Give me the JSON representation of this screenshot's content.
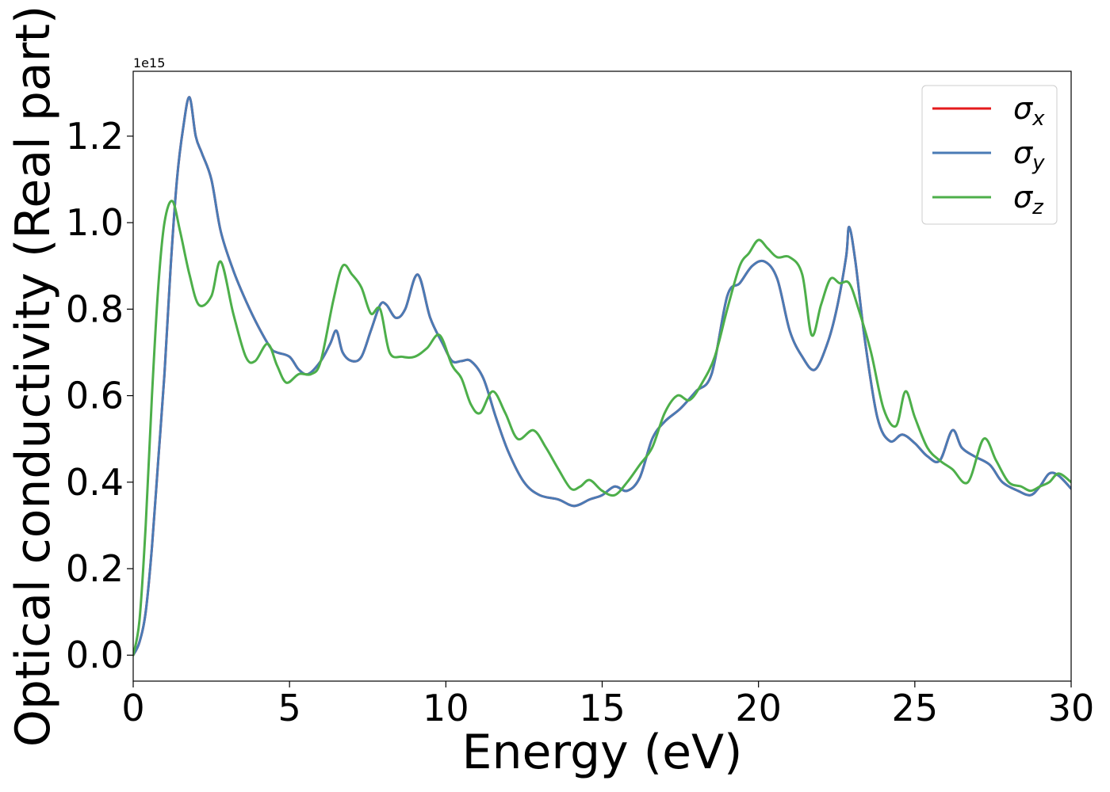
{
  "chart_data": {
    "type": "line",
    "title": "",
    "xlabel": "Energy (eV)",
    "ylabel": "Optical conductivity (Real part)",
    "y_offset_text": "1e15",
    "y_scale": 1000000000000000.0,
    "xlim": [
      0,
      30
    ],
    "ylim": [
      -0.06,
      1.35
    ],
    "xticks": [
      0,
      5,
      10,
      15,
      20,
      25,
      30
    ],
    "xtick_labels": [
      "0",
      "5",
      "10",
      "15",
      "20",
      "25",
      "30"
    ],
    "yticks": [
      0.0,
      0.2,
      0.4,
      0.6,
      0.8,
      1.0,
      1.2
    ],
    "ytick_labels": [
      "0.0",
      "0.2",
      "0.4",
      "0.6",
      "0.8",
      "1.0",
      "1.2"
    ],
    "grid": false,
    "legend_position": "top-right",
    "series": [
      {
        "name": "σx",
        "symbol": "σ",
        "subscript": "x",
        "color": "#e41a1c",
        "x": [
          0,
          0.2,
          0.4,
          0.6,
          0.8,
          1.0,
          1.2,
          1.4,
          1.6,
          1.8,
          2.0,
          2.2,
          2.5,
          2.8,
          3.2,
          3.6,
          4.0,
          4.4,
          4.6,
          5.0,
          5.3,
          5.6,
          6.0,
          6.3,
          6.5,
          6.7,
          7.0,
          7.3,
          7.6,
          7.9,
          8.1,
          8.4,
          8.7,
          9.1,
          9.5,
          9.9,
          10.2,
          10.5,
          10.8,
          11.2,
          11.6,
          12.0,
          12.5,
          13.0,
          13.6,
          14.1,
          14.6,
          15.0,
          15.4,
          15.8,
          16.2,
          16.6,
          17.0,
          17.5,
          18.0,
          18.5,
          19.0,
          19.4,
          19.8,
          20.2,
          20.6,
          21.0,
          21.4,
          21.8,
          22.2,
          22.5,
          22.8,
          22.9,
          23.1,
          23.4,
          23.8,
          24.2,
          24.6,
          25.0,
          25.4,
          25.8,
          26.2,
          26.5,
          26.9,
          27.4,
          27.8,
          28.3,
          28.7,
          29.0,
          29.3,
          29.6,
          30.0
        ],
        "y": [
          0.0,
          0.03,
          0.1,
          0.25,
          0.45,
          0.65,
          0.9,
          1.1,
          1.22,
          1.29,
          1.2,
          1.16,
          1.1,
          0.98,
          0.89,
          0.82,
          0.76,
          0.71,
          0.7,
          0.69,
          0.66,
          0.65,
          0.68,
          0.72,
          0.75,
          0.7,
          0.68,
          0.69,
          0.75,
          0.81,
          0.81,
          0.78,
          0.8,
          0.88,
          0.78,
          0.72,
          0.68,
          0.68,
          0.68,
          0.64,
          0.55,
          0.47,
          0.4,
          0.37,
          0.36,
          0.345,
          0.36,
          0.37,
          0.39,
          0.38,
          0.41,
          0.5,
          0.54,
          0.57,
          0.61,
          0.65,
          0.83,
          0.86,
          0.9,
          0.91,
          0.87,
          0.75,
          0.69,
          0.66,
          0.72,
          0.8,
          0.92,
          0.99,
          0.91,
          0.73,
          0.55,
          0.495,
          0.51,
          0.49,
          0.46,
          0.45,
          0.52,
          0.48,
          0.46,
          0.44,
          0.4,
          0.38,
          0.37,
          0.39,
          0.42,
          0.415,
          0.385
        ]
      },
      {
        "name": "σy",
        "symbol": "σ",
        "subscript": "y",
        "color": "#4a7bb5",
        "x": [
          0,
          0.2,
          0.4,
          0.6,
          0.8,
          1.0,
          1.2,
          1.4,
          1.6,
          1.8,
          2.0,
          2.2,
          2.5,
          2.8,
          3.2,
          3.6,
          4.0,
          4.4,
          4.6,
          5.0,
          5.3,
          5.6,
          6.0,
          6.3,
          6.5,
          6.7,
          7.0,
          7.3,
          7.6,
          7.9,
          8.1,
          8.4,
          8.7,
          9.1,
          9.5,
          9.9,
          10.2,
          10.5,
          10.8,
          11.2,
          11.6,
          12.0,
          12.5,
          13.0,
          13.6,
          14.1,
          14.6,
          15.0,
          15.4,
          15.8,
          16.2,
          16.6,
          17.0,
          17.5,
          18.0,
          18.5,
          19.0,
          19.4,
          19.8,
          20.2,
          20.6,
          21.0,
          21.4,
          21.8,
          22.2,
          22.5,
          22.8,
          22.9,
          23.1,
          23.4,
          23.8,
          24.2,
          24.6,
          25.0,
          25.4,
          25.8,
          26.2,
          26.5,
          26.9,
          27.4,
          27.8,
          28.3,
          28.7,
          29.0,
          29.3,
          29.6,
          30.0
        ],
        "y": [
          0.0,
          0.03,
          0.1,
          0.25,
          0.45,
          0.65,
          0.9,
          1.1,
          1.22,
          1.29,
          1.2,
          1.16,
          1.1,
          0.98,
          0.89,
          0.82,
          0.76,
          0.71,
          0.7,
          0.69,
          0.66,
          0.65,
          0.68,
          0.72,
          0.75,
          0.7,
          0.68,
          0.69,
          0.75,
          0.81,
          0.81,
          0.78,
          0.8,
          0.88,
          0.78,
          0.72,
          0.68,
          0.68,
          0.68,
          0.64,
          0.55,
          0.47,
          0.4,
          0.37,
          0.36,
          0.345,
          0.36,
          0.37,
          0.39,
          0.38,
          0.41,
          0.5,
          0.54,
          0.57,
          0.61,
          0.65,
          0.83,
          0.86,
          0.9,
          0.91,
          0.87,
          0.75,
          0.69,
          0.66,
          0.72,
          0.8,
          0.92,
          0.99,
          0.91,
          0.73,
          0.55,
          0.495,
          0.51,
          0.49,
          0.46,
          0.45,
          0.52,
          0.48,
          0.46,
          0.44,
          0.4,
          0.38,
          0.37,
          0.39,
          0.42,
          0.415,
          0.385
        ]
      },
      {
        "name": "σz",
        "symbol": "σ",
        "subscript": "z",
        "color": "#4daf4a",
        "x": [
          0,
          0.2,
          0.4,
          0.6,
          0.8,
          1.0,
          1.25,
          1.5,
          1.8,
          2.1,
          2.5,
          2.8,
          3.2,
          3.6,
          3.9,
          4.3,
          4.6,
          4.9,
          5.3,
          5.7,
          6.0,
          6.4,
          6.7,
          7.0,
          7.3,
          7.6,
          7.9,
          8.2,
          8.6,
          9.0,
          9.4,
          9.8,
          10.2,
          10.5,
          10.8,
          11.1,
          11.5,
          11.9,
          12.3,
          12.8,
          13.2,
          13.6,
          14.0,
          14.3,
          14.6,
          15.0,
          15.4,
          15.8,
          16.2,
          16.6,
          17.0,
          17.4,
          17.8,
          18.2,
          18.6,
          19.0,
          19.4,
          19.7,
          20.0,
          20.3,
          20.6,
          21.0,
          21.4,
          21.7,
          22.0,
          22.3,
          22.6,
          22.9,
          23.2,
          23.6,
          24.0,
          24.4,
          24.7,
          25.0,
          25.4,
          25.8,
          26.2,
          26.7,
          27.2,
          27.6,
          28.0,
          28.4,
          28.7,
          29.0,
          29.3,
          29.6,
          30.0
        ],
        "y": [
          0.0,
          0.08,
          0.3,
          0.6,
          0.85,
          1.0,
          1.05,
          0.98,
          0.88,
          0.81,
          0.83,
          0.91,
          0.79,
          0.69,
          0.68,
          0.72,
          0.67,
          0.63,
          0.65,
          0.65,
          0.68,
          0.82,
          0.9,
          0.88,
          0.85,
          0.79,
          0.8,
          0.7,
          0.69,
          0.69,
          0.71,
          0.74,
          0.67,
          0.64,
          0.58,
          0.56,
          0.61,
          0.56,
          0.5,
          0.52,
          0.48,
          0.43,
          0.385,
          0.39,
          0.405,
          0.38,
          0.37,
          0.4,
          0.44,
          0.48,
          0.56,
          0.6,
          0.59,
          0.63,
          0.69,
          0.8,
          0.9,
          0.93,
          0.96,
          0.94,
          0.92,
          0.92,
          0.88,
          0.74,
          0.81,
          0.87,
          0.86,
          0.86,
          0.8,
          0.7,
          0.57,
          0.53,
          0.61,
          0.55,
          0.48,
          0.45,
          0.43,
          0.4,
          0.5,
          0.45,
          0.4,
          0.39,
          0.38,
          0.39,
          0.4,
          0.42,
          0.4
        ]
      }
    ]
  }
}
